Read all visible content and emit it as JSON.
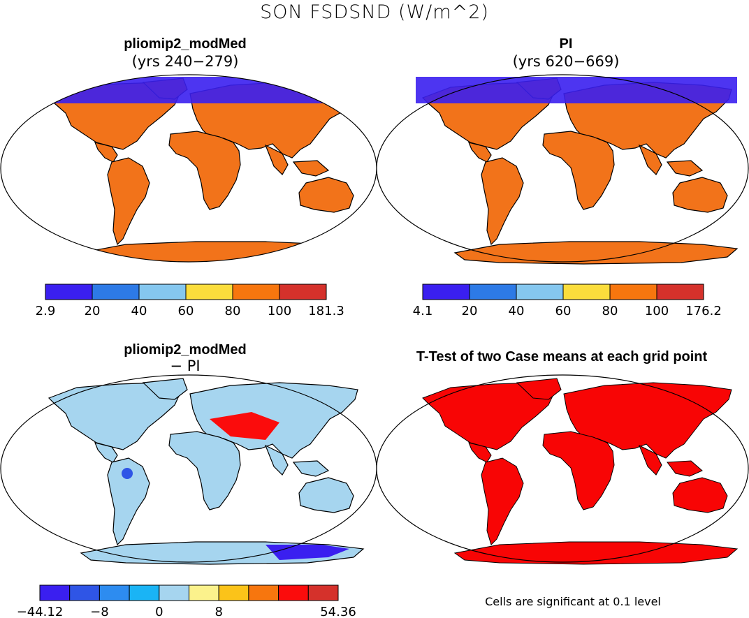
{
  "figure_title": "SON FSDSND (W/m^2)",
  "panels": {
    "a": {
      "title": "pliomip2_modMed",
      "subtitle": "(yrs 240−279)"
    },
    "b": {
      "title": "PI",
      "subtitle": "(yrs 620−669)"
    },
    "c": {
      "title": "pliomip2_modMed",
      "subtitle": "− PI"
    },
    "d": {
      "title": "T-Test of two Case means at each grid point",
      "note": "Cells are significant at 0.1 level"
    }
  },
  "colorbars": {
    "a": {
      "labels": [
        "2.9",
        "20",
        "40",
        "60",
        "80",
        "100",
        "181.3"
      ],
      "colors": [
        "#3a1ff0",
        "#2d7ae6",
        "#85c7ef",
        "#fbdd3c",
        "#f7760e",
        "#d5312b"
      ]
    },
    "b": {
      "labels": [
        "4.1",
        "20",
        "40",
        "60",
        "80",
        "100",
        "176.2"
      ],
      "colors": [
        "#3a1ff0",
        "#2d7ae6",
        "#85c7ef",
        "#fbdd3c",
        "#f7760e",
        "#d5312b"
      ]
    },
    "c": {
      "labels": [
        "−44.12",
        "−8",
        "0",
        "8",
        "54.36"
      ],
      "colors": [
        "#3a1ff0",
        "#2f55e6",
        "#2d8cf0",
        "#1ab4f5",
        "#a6d5ef",
        "#fbf28c",
        "#fbc319",
        "#f7760e",
        "#fb0c0c",
        "#d5312b"
      ]
    }
  },
  "map_fill": {
    "a_land": "#f2731a",
    "b_land": "#f2731a",
    "c_land": "#a6d5ef",
    "d_land": "#f80505"
  }
}
